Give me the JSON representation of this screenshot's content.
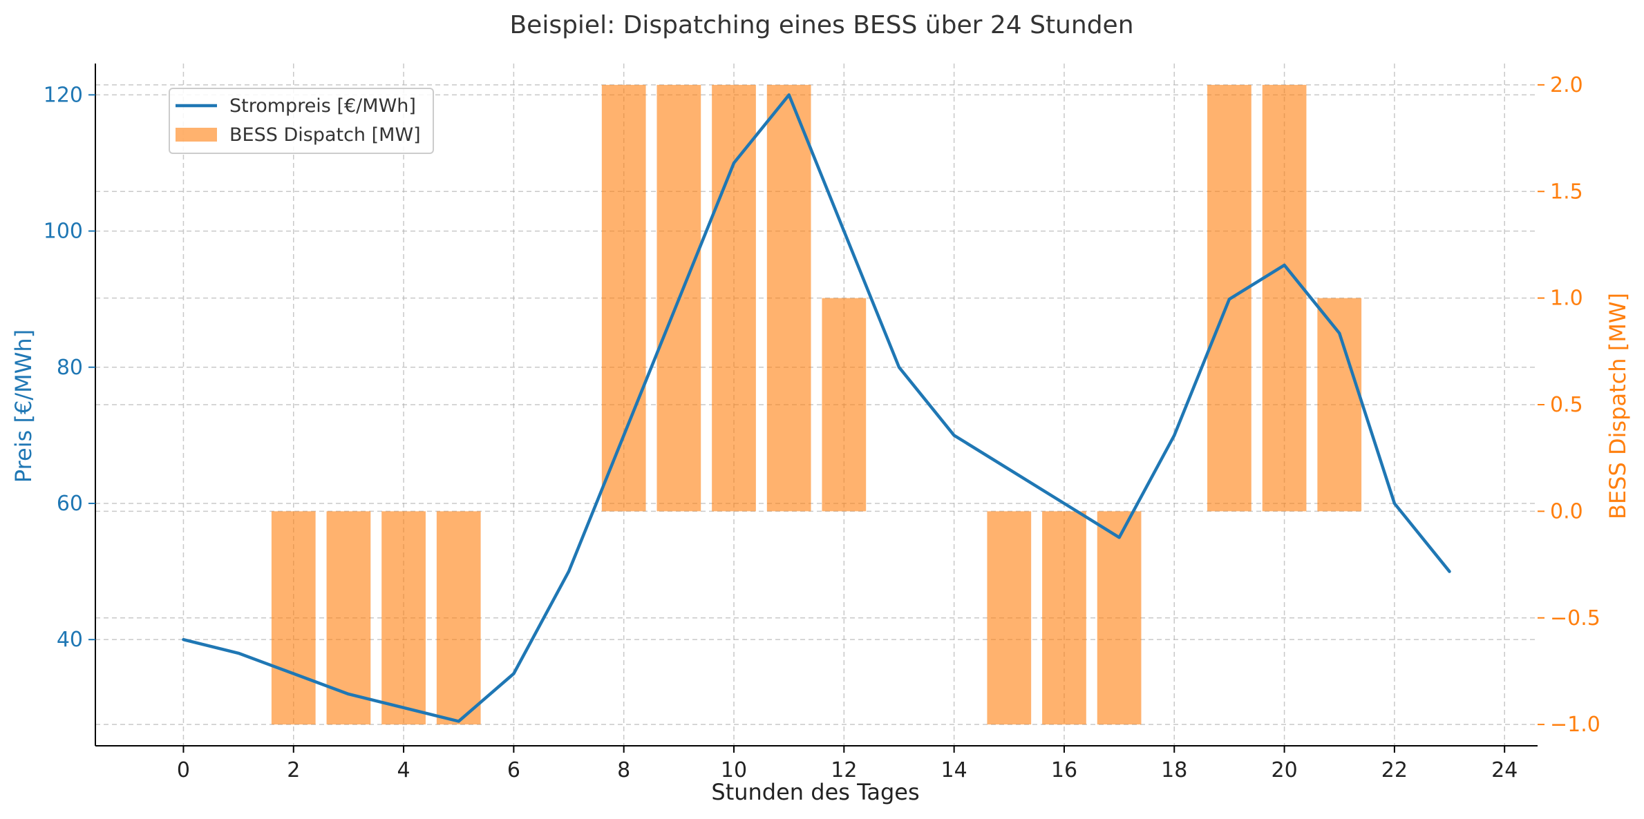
{
  "chart_data": {
    "type": "bar+line",
    "title": "Beispiel: Dispatching eines BESS über 24 Stunden",
    "xlabel": "Stunden des Tages",
    "ylabel_left": "Preis [€/MWh]",
    "ylabel_right": "BESS Dispatch [MW]",
    "xlim": [
      -1.6,
      24.6
    ],
    "ylim_left": [
      24.4,
      124.6
    ],
    "ylim_right": [
      -1.1,
      2.1
    ],
    "x_ticks": [
      0,
      2,
      4,
      6,
      8,
      10,
      12,
      14,
      16,
      18,
      20,
      22,
      24
    ],
    "y_left_ticks": [
      40,
      60,
      80,
      100,
      120
    ],
    "y_right_ticks": [
      -1.0,
      -0.5,
      0.0,
      0.5,
      1.0,
      1.5,
      2.0
    ],
    "y_right_tick_labels": [
      "−1.0",
      "−0.5",
      "0.0",
      "0.5",
      "1.0",
      "1.5",
      "2.0"
    ],
    "grid": true,
    "legend_position": "upper-left",
    "hours": [
      0,
      1,
      2,
      3,
      4,
      5,
      6,
      7,
      8,
      9,
      10,
      11,
      12,
      13,
      14,
      15,
      16,
      17,
      18,
      19,
      20,
      21,
      22,
      23
    ],
    "series": [
      {
        "name": "Strompreis [€/MWh]",
        "type": "line",
        "axis": "left",
        "color": "#1f77b4",
        "values": [
          40,
          38,
          35,
          32,
          30,
          28,
          35,
          50,
          70,
          90,
          110,
          120,
          100,
          80,
          70,
          65,
          60,
          55,
          70,
          90,
          95,
          85,
          60,
          50
        ]
      },
      {
        "name": "BESS Dispatch [MW]",
        "type": "bar",
        "axis": "right",
        "color": "#ff7f0e",
        "opacity": 0.6,
        "values": [
          0,
          0,
          -1,
          -1,
          -1,
          -1,
          0,
          0,
          2,
          2,
          2,
          2,
          1,
          0,
          0,
          -1,
          -1,
          -1,
          0,
          2,
          2,
          1,
          0,
          0
        ]
      }
    ]
  }
}
